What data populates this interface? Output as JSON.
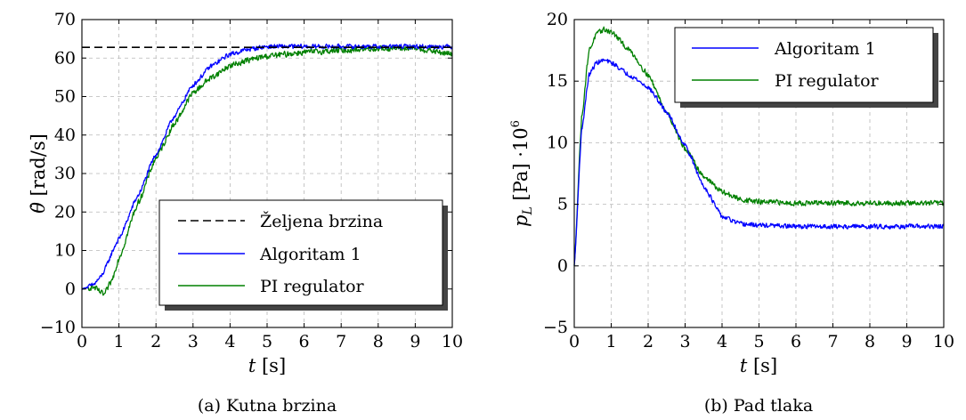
{
  "chart_data": [
    {
      "type": "line",
      "caption": "(a) Kutna brzina",
      "xlabel_var": "t",
      "xlabel_unit": "[s]",
      "ylabel_var": "θ̇",
      "ylabel_unit": "[rad/s]",
      "xlim": [
        0,
        10
      ],
      "ylim": [
        -10,
        70
      ],
      "xticks": [
        "0",
        "1",
        "2",
        "3",
        "4",
        "5",
        "6",
        "7",
        "8",
        "9",
        "10"
      ],
      "yticks": [
        "−10",
        "0",
        "10",
        "20",
        "30",
        "40",
        "50",
        "60",
        "70"
      ],
      "grid": true,
      "legend": {
        "position": "bottom-right",
        "entries": [
          "Željena brzina",
          "Algoritam 1",
          "PI regulator"
        ]
      },
      "series": [
        {
          "name": "Željena brzina",
          "style": "dashed",
          "color": "#000000",
          "x": [
            0,
            10
          ],
          "y": [
            62.8,
            62.8
          ]
        },
        {
          "name": "Algoritam 1",
          "style": "solid",
          "color": "#0000ff",
          "noise": 0.7,
          "x": [
            0,
            0.3,
            0.5,
            1.0,
            1.5,
            2.0,
            2.5,
            3.0,
            3.5,
            4.0,
            4.5,
            5.0,
            6.0,
            7.0,
            8.0,
            9.0,
            10.0
          ],
          "y": [
            0,
            1,
            3,
            13,
            24,
            35,
            45,
            53,
            58,
            61,
            62.3,
            63,
            63,
            63,
            63,
            63,
            63
          ]
        },
        {
          "name": "PI regulator",
          "style": "solid",
          "color": "#008000",
          "noise": 0.9,
          "x": [
            0,
            0.3,
            0.6,
            0.8,
            1.0,
            1.5,
            2.0,
            2.5,
            3.0,
            3.5,
            4.0,
            4.5,
            5.0,
            6.0,
            7.0,
            8.0,
            9.0,
            10.0
          ],
          "y": [
            0,
            0.5,
            -1.5,
            2,
            8,
            22,
            34,
            43,
            51,
            55,
            58,
            59.5,
            60.5,
            61.5,
            62,
            62.5,
            62.5,
            61
          ]
        }
      ]
    },
    {
      "type": "line",
      "caption": "(b) Pad tlaka",
      "xlabel_var": "t",
      "xlabel_unit": "[s]",
      "ylabel_var": "p",
      "ylabel_sub": "L",
      "ylabel_unit": "[Pa] ·10",
      "ylabel_exp": "6",
      "xlim": [
        0,
        10
      ],
      "ylim": [
        -5,
        20
      ],
      "xticks": [
        "0",
        "1",
        "2",
        "3",
        "4",
        "5",
        "6",
        "7",
        "8",
        "9",
        "10"
      ],
      "yticks": [
        "−5",
        "0",
        "5",
        "10",
        "15",
        "20"
      ],
      "grid": true,
      "legend": {
        "position": "top-right",
        "entries": [
          "Algoritam 1",
          "PI regulator"
        ]
      },
      "series": [
        {
          "name": "Algoritam 1",
          "style": "solid",
          "color": "#0000ff",
          "noise": 0.22,
          "x": [
            0,
            0.2,
            0.4,
            0.6,
            0.8,
            1.0,
            1.5,
            2.0,
            2.5,
            3.0,
            3.5,
            4.0,
            4.5,
            5.0,
            6.0,
            7.0,
            8.0,
            9.0,
            10.0
          ],
          "y": [
            0,
            11,
            15.5,
            16.5,
            16.7,
            16.5,
            15.5,
            14.5,
            12.5,
            9.8,
            6.5,
            4.0,
            3.4,
            3.3,
            3.2,
            3.2,
            3.2,
            3.2,
            3.2
          ]
        },
        {
          "name": "PI regulator",
          "style": "solid",
          "color": "#008000",
          "noise": 0.25,
          "x": [
            0,
            0.2,
            0.4,
            0.6,
            0.8,
            1.0,
            1.5,
            2.0,
            2.5,
            3.0,
            3.5,
            4.0,
            4.5,
            5.0,
            6.0,
            7.0,
            8.0,
            9.0,
            10.0
          ],
          "y": [
            0,
            12,
            17.5,
            18.8,
            19.2,
            19.0,
            17.5,
            15.5,
            12.5,
            9.5,
            7.3,
            6.0,
            5.4,
            5.2,
            5.1,
            5.1,
            5.1,
            5.1,
            5.1
          ]
        }
      ]
    }
  ]
}
